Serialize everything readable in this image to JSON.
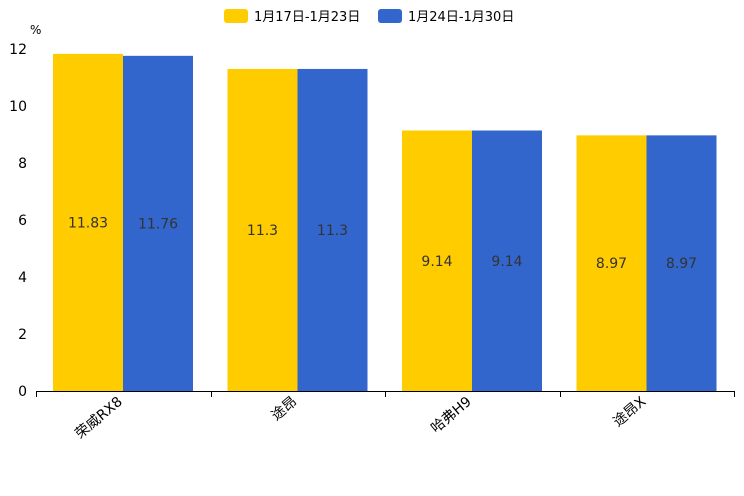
{
  "chart_data": {
    "type": "bar",
    "title": "",
    "unit": "%",
    "xlabel": "",
    "ylabel": "%",
    "ylim": [
      0,
      12
    ],
    "yticks": [
      0,
      2,
      4,
      6,
      8,
      10,
      12
    ],
    "grid": false,
    "legend_position": "top-center",
    "categories": [
      "荣威RX8",
      "途昂",
      "哈弗H9",
      "途昂X"
    ],
    "series": [
      {
        "name": "1月17日-1月23日",
        "color": "#FFCC00",
        "values": [
          11.83,
          11.3,
          9.14,
          8.97
        ]
      },
      {
        "name": "1月24日-1月30日",
        "color": "#3366CC",
        "values": [
          11.76,
          11.3,
          9.14,
          8.97
        ]
      }
    ]
  }
}
